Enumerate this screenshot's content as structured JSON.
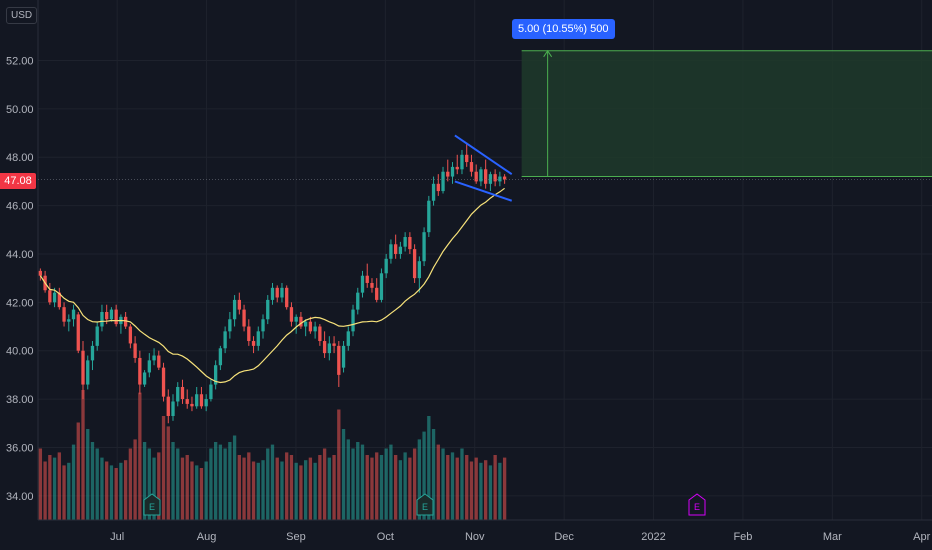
{
  "currency": "USD",
  "last_price": "47.08",
  "colors": {
    "background": "#131722",
    "grid": "#1e222d",
    "up": "#26a69a",
    "down": "#ef5350",
    "ma": "#f7e27a",
    "trendline": "#2962ff",
    "target_zone": "#1e3a2a",
    "target_border": "#4caf50",
    "earnings_marker": "#26a69a",
    "earnings_future": "#d500f9"
  },
  "measure_label": "5.00 (10.55%) 500",
  "earnings_icon": "E",
  "chart_data": {
    "type": "candlestick",
    "y_ticks": [
      "52.00",
      "50.00",
      "48.00",
      "46.00",
      "44.00",
      "42.00",
      "40.00",
      "38.00",
      "36.00",
      "34.00"
    ],
    "ylim": [
      33.0,
      54.5
    ],
    "x_ticks": [
      "Jul",
      "Aug",
      "Sep",
      "Oct",
      "Nov",
      "Dec",
      "2022",
      "Feb",
      "Mar",
      "Apr"
    ],
    "x_range_days": [
      0,
      305
    ],
    "ma_period": 20,
    "target_zone": {
      "low": 47.2,
      "high": 52.4
    },
    "trendline_upper": [
      [
        45,
        48.9
      ],
      [
        52,
        47.3
      ]
    ],
    "trendline_lower": [
      [
        45,
        47.0
      ],
      [
        52,
        46.2
      ]
    ],
    "earnings_days": [
      35,
      125
    ],
    "future_earnings_day": 215,
    "ohlc": [
      [
        43.3,
        43.4,
        42.9,
        43.1
      ],
      [
        43.1,
        43.3,
        42.4,
        42.5
      ],
      [
        42.5,
        42.8,
        41.9,
        42.0
      ],
      [
        42.0,
        42.6,
        41.8,
        42.4
      ],
      [
        42.4,
        42.6,
        41.7,
        41.8
      ],
      [
        41.8,
        42.0,
        41.0,
        41.2
      ],
      [
        41.2,
        41.5,
        40.8,
        41.3
      ],
      [
        41.3,
        41.9,
        41.0,
        41.7
      ],
      [
        41.5,
        41.6,
        39.9,
        40.0
      ],
      [
        40.0,
        40.4,
        38.0,
        38.6
      ],
      [
        38.6,
        39.8,
        38.4,
        39.6
      ],
      [
        39.6,
        40.4,
        39.2,
        40.2
      ],
      [
        40.2,
        41.2,
        40.0,
        41.0
      ],
      [
        41.0,
        41.9,
        40.8,
        41.6
      ],
      [
        41.6,
        41.9,
        41.1,
        41.3
      ],
      [
        41.3,
        41.8,
        41.2,
        41.7
      ],
      [
        41.7,
        41.9,
        41.0,
        41.1
      ],
      [
        41.1,
        41.5,
        40.7,
        41.4
      ],
      [
        41.4,
        41.6,
        40.9,
        41.0
      ],
      [
        41.0,
        41.1,
        40.1,
        40.3
      ],
      [
        40.3,
        40.6,
        39.5,
        39.7
      ],
      [
        39.7,
        40.0,
        38.2,
        38.6
      ],
      [
        38.6,
        39.2,
        38.5,
        39.1
      ],
      [
        39.1,
        39.9,
        38.9,
        39.6
      ],
      [
        39.6,
        40.1,
        39.4,
        39.8
      ],
      [
        39.8,
        40.0,
        39.2,
        39.3
      ],
      [
        39.3,
        39.5,
        37.9,
        38.1
      ],
      [
        38.1,
        38.4,
        37.0,
        37.3
      ],
      [
        37.3,
        38.2,
        37.1,
        37.9
      ],
      [
        37.9,
        38.7,
        37.7,
        38.5
      ],
      [
        38.5,
        38.8,
        37.8,
        38.0
      ],
      [
        38.0,
        38.4,
        37.6,
        37.8
      ],
      [
        37.8,
        38.1,
        37.5,
        37.7
      ],
      [
        37.7,
        38.5,
        37.6,
        38.2
      ],
      [
        38.2,
        38.5,
        37.6,
        37.7
      ],
      [
        37.7,
        38.2,
        37.5,
        38.0
      ],
      [
        38.0,
        38.8,
        37.9,
        38.6
      ],
      [
        38.6,
        39.6,
        38.4,
        39.4
      ],
      [
        39.4,
        40.2,
        39.2,
        40.1
      ],
      [
        40.1,
        41.0,
        39.9,
        40.8
      ],
      [
        40.8,
        41.6,
        40.5,
        41.3
      ],
      [
        41.3,
        42.3,
        41.0,
        42.1
      ],
      [
        42.1,
        42.4,
        41.5,
        41.7
      ],
      [
        41.7,
        41.9,
        40.8,
        41.0
      ],
      [
        41.0,
        41.3,
        40.2,
        40.4
      ],
      [
        40.4,
        40.6,
        39.9,
        40.2
      ],
      [
        40.2,
        41.0,
        40.0,
        40.8
      ],
      [
        40.8,
        41.5,
        40.5,
        41.3
      ],
      [
        41.3,
        42.3,
        41.1,
        42.1
      ],
      [
        42.1,
        42.8,
        41.9,
        42.6
      ],
      [
        42.6,
        42.7,
        42.0,
        42.2
      ],
      [
        42.2,
        42.8,
        42.0,
        42.6
      ],
      [
        42.6,
        42.7,
        41.7,
        41.8
      ],
      [
        41.8,
        42.0,
        41.0,
        41.2
      ],
      [
        41.2,
        41.5,
        40.7,
        41.4
      ],
      [
        41.4,
        41.6,
        40.9,
        41.0
      ],
      [
        41.0,
        41.3,
        40.6,
        41.2
      ],
      [
        41.2,
        41.4,
        40.7,
        40.8
      ],
      [
        40.8,
        41.2,
        40.5,
        41.0
      ],
      [
        41.0,
        41.1,
        40.2,
        40.4
      ],
      [
        40.4,
        40.8,
        39.7,
        39.9
      ],
      [
        39.9,
        40.6,
        39.6,
        40.3
      ],
      [
        40.3,
        40.6,
        39.9,
        40.2
      ],
      [
        40.2,
        40.4,
        38.5,
        39.0
      ],
      [
        39.3,
        40.4,
        39.1,
        40.2
      ],
      [
        40.2,
        41.0,
        40.0,
        40.8
      ],
      [
        40.8,
        41.9,
        40.6,
        41.7
      ],
      [
        41.7,
        42.6,
        41.5,
        42.4
      ],
      [
        42.4,
        43.3,
        42.2,
        43.1
      ],
      [
        43.1,
        43.6,
        42.6,
        42.8
      ],
      [
        42.8,
        43.0,
        42.4,
        42.6
      ],
      [
        42.6,
        43.0,
        42.0,
        42.1
      ],
      [
        42.1,
        43.4,
        42.0,
        43.2
      ],
      [
        43.2,
        44.0,
        43.0,
        43.8
      ],
      [
        43.8,
        44.6,
        43.6,
        44.4
      ],
      [
        44.4,
        44.8,
        43.8,
        44.0
      ],
      [
        44.0,
        44.5,
        43.8,
        44.3
      ],
      [
        44.3,
        44.9,
        44.1,
        44.7
      ],
      [
        44.7,
        44.9,
        44.0,
        44.2
      ],
      [
        44.2,
        44.4,
        42.8,
        43.0
      ],
      [
        43.0,
        43.9,
        42.4,
        43.7
      ],
      [
        43.7,
        45.1,
        43.5,
        44.9
      ],
      [
        44.9,
        46.4,
        44.7,
        46.2
      ],
      [
        46.2,
        47.2,
        46.0,
        46.9
      ],
      [
        46.9,
        47.3,
        46.4,
        46.6
      ],
      [
        46.6,
        47.6,
        46.5,
        47.4
      ],
      [
        47.4,
        47.9,
        47.0,
        47.2
      ],
      [
        47.2,
        47.8,
        46.9,
        47.6
      ],
      [
        47.6,
        48.1,
        47.3,
        47.5
      ],
      [
        47.5,
        48.3,
        47.3,
        48.1
      ],
      [
        48.1,
        48.6,
        47.6,
        47.8
      ],
      [
        47.8,
        48.1,
        47.2,
        47.4
      ],
      [
        47.4,
        47.7,
        46.9,
        47.0
      ],
      [
        47.0,
        47.6,
        46.8,
        47.5
      ],
      [
        47.5,
        47.9,
        46.7,
        46.9
      ],
      [
        46.9,
        47.4,
        46.6,
        47.3
      ],
      [
        47.3,
        47.5,
        46.8,
        47.0
      ],
      [
        47.0,
        47.4,
        46.8,
        47.2
      ],
      [
        47.2,
        47.3,
        46.9,
        47.08
      ]
    ],
    "volume_rel": [
      0.55,
      0.45,
      0.5,
      0.48,
      0.52,
      0.42,
      0.44,
      0.58,
      0.75,
      1.0,
      0.7,
      0.6,
      0.55,
      0.48,
      0.45,
      0.42,
      0.4,
      0.44,
      0.46,
      0.55,
      0.62,
      0.98,
      0.6,
      0.55,
      0.48,
      0.52,
      0.8,
      0.72,
      0.6,
      0.55,
      0.48,
      0.5,
      0.45,
      0.42,
      0.4,
      0.45,
      0.55,
      0.6,
      0.58,
      0.55,
      0.6,
      0.65,
      0.5,
      0.48,
      0.52,
      0.45,
      0.44,
      0.46,
      0.55,
      0.58,
      0.48,
      0.45,
      0.52,
      0.5,
      0.44,
      0.42,
      0.46,
      0.48,
      0.44,
      0.5,
      0.55,
      0.48,
      0.5,
      0.85,
      0.7,
      0.62,
      0.55,
      0.6,
      0.58,
      0.5,
      0.48,
      0.52,
      0.5,
      0.55,
      0.58,
      0.5,
      0.46,
      0.52,
      0.48,
      0.55,
      0.62,
      0.68,
      0.8,
      0.7,
      0.58,
      0.55,
      0.5,
      0.52,
      0.48,
      0.55,
      0.5,
      0.45,
      0.48,
      0.44,
      0.46,
      0.42,
      0.5,
      0.44,
      0.48,
      0.42
    ]
  }
}
